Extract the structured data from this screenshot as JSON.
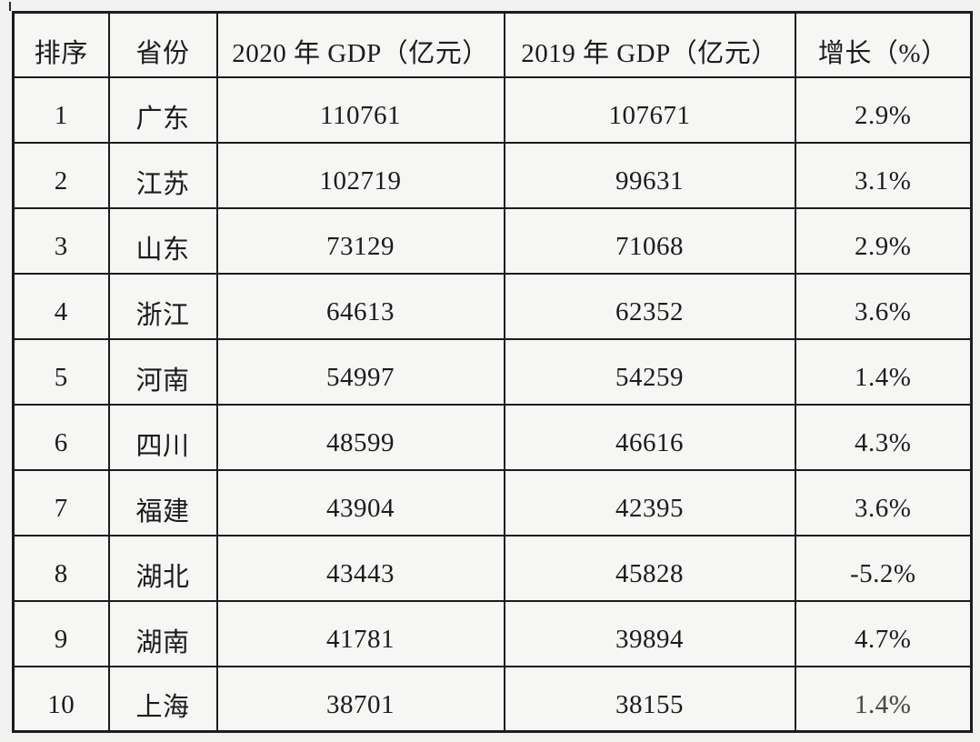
{
  "page": {
    "background_color": "#f1f1f0",
    "border_color": "#1c1c1c",
    "cell_background": "#f6f6f5"
  },
  "table": {
    "header": {
      "rank": "排序",
      "province": "省份",
      "gdp2020": "2020 年 GDP（亿元）",
      "gdp2019": "2019 年 GDP（亿元）",
      "growth": "增长（%）"
    },
    "rows": [
      {
        "rank": "1",
        "province": "广东",
        "gdp2020": "110761",
        "gdp2019": "107671",
        "growth": "2.9%"
      },
      {
        "rank": "2",
        "province": "江苏",
        "gdp2020": "102719",
        "gdp2019": "99631",
        "growth": "3.1%"
      },
      {
        "rank": "3",
        "province": "山东",
        "gdp2020": "73129",
        "gdp2019": "71068",
        "growth": "2.9%"
      },
      {
        "rank": "4",
        "province": "浙江",
        "gdp2020": "64613",
        "gdp2019": "62352",
        "growth": "3.6%"
      },
      {
        "rank": "5",
        "province": "河南",
        "gdp2020": "54997",
        "gdp2019": "54259",
        "growth": "1.4%"
      },
      {
        "rank": "6",
        "province": "四川",
        "gdp2020": "48599",
        "gdp2019": "46616",
        "growth": "4.3%"
      },
      {
        "rank": "7",
        "province": "福建",
        "gdp2020": "43904",
        "gdp2019": "42395",
        "growth": "3.6%"
      },
      {
        "rank": "8",
        "province": "湖北",
        "gdp2020": "43443",
        "gdp2019": "45828",
        "growth": "-5.2%"
      },
      {
        "rank": "9",
        "province": "湖南",
        "gdp2020": "41781",
        "gdp2019": "39894",
        "growth": "4.7%"
      },
      {
        "rank": "10",
        "province": "上海",
        "gdp2020": "38701",
        "gdp2019": "38155",
        "growth": "1.4%"
      }
    ]
  },
  "chart_data": {
    "type": "table",
    "title": "",
    "columns": [
      "排序",
      "省份",
      "2020年GDP（亿元）",
      "2019年GDP（亿元）",
      "增长（%）"
    ],
    "rows": [
      [
        1,
        "广东",
        110761,
        107671,
        "2.9%"
      ],
      [
        2,
        "江苏",
        102719,
        99631,
        "3.1%"
      ],
      [
        3,
        "山东",
        73129,
        71068,
        "2.9%"
      ],
      [
        4,
        "浙江",
        64613,
        62352,
        "3.6%"
      ],
      [
        5,
        "河南",
        54997,
        54259,
        "1.4%"
      ],
      [
        6,
        "四川",
        48599,
        46616,
        "4.3%"
      ],
      [
        7,
        "福建",
        43904,
        42395,
        "3.6%"
      ],
      [
        8,
        "湖北",
        43443,
        45828,
        "-5.2%"
      ],
      [
        9,
        "湖南",
        41781,
        39894,
        "4.7%"
      ],
      [
        10,
        "上海",
        38701,
        38155,
        "1.4%"
      ]
    ]
  }
}
